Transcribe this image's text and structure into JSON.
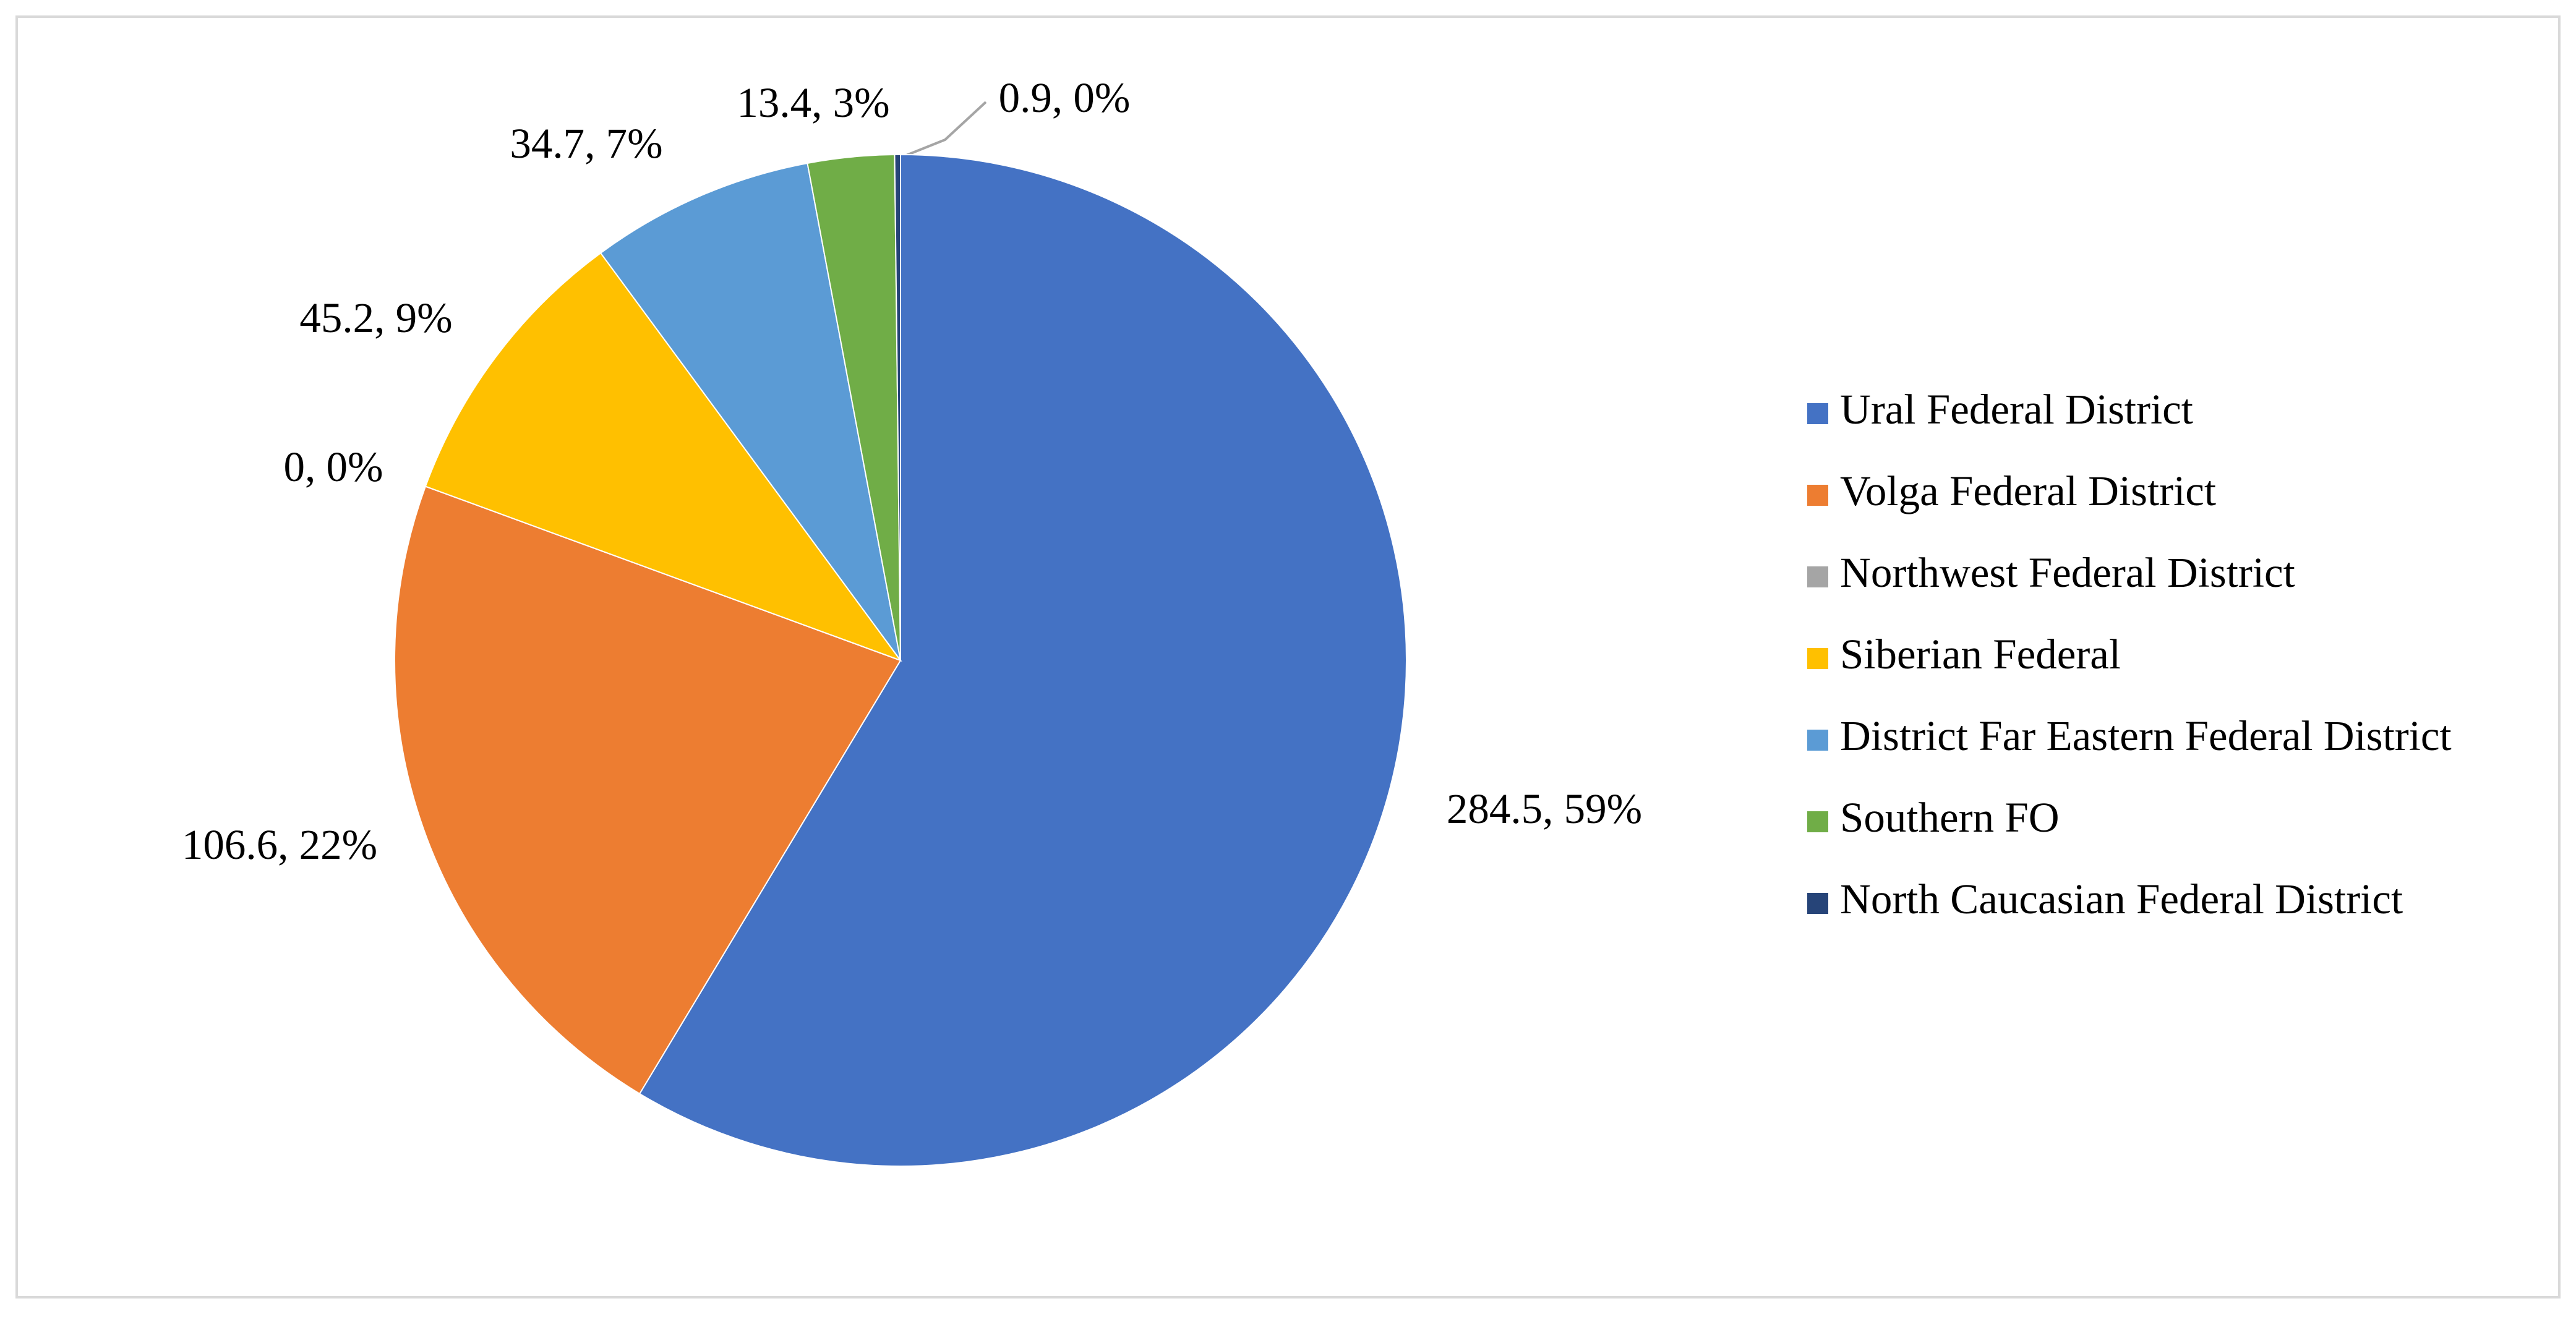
{
  "chart_data": {
    "type": "pie",
    "categories": [
      "Ural Federal District",
      "Volga Federal District",
      "Northwest Federal District",
      "Siberian Federal",
      "District Far Eastern Federal District",
      "Southern FO",
      "North Caucasian Federal District"
    ],
    "values": [
      284.5,
      106.6,
      0,
      45.2,
      34.7,
      13.4,
      0.9
    ],
    "value_labels": [
      "284.5, 59%",
      "106.6, 22%",
      "0, 0%",
      "45.2, 9%",
      "34.7, 7%",
      "13.4, 3%",
      "0.9, 0%"
    ],
    "colors": [
      "#4472c4",
      "#ed7d31",
      "#a5a5a5",
      "#ffc000",
      "#5b9bd5",
      "#70ad47",
      "#264478"
    ],
    "legend": "right"
  }
}
